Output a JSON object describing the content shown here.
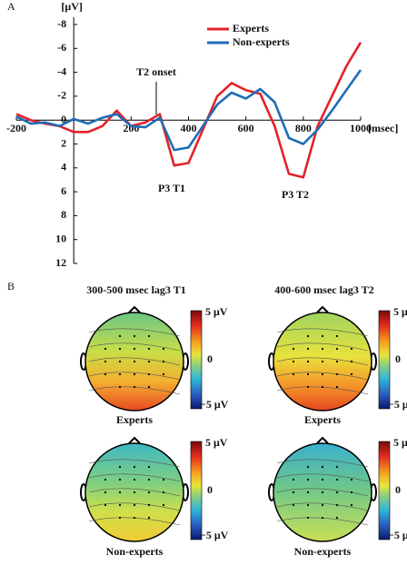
{
  "panel_labels": [
    "A",
    "B"
  ],
  "chart_data": {
    "type": "line",
    "y_label": "[μV]",
    "x_label": "[msec]",
    "x": [
      -200,
      -150,
      -100,
      -50,
      0,
      50,
      100,
      150,
      200,
      250,
      300,
      350,
      400,
      450,
      500,
      550,
      600,
      650,
      700,
      750,
      800,
      850,
      900,
      950,
      1000
    ],
    "series": [
      {
        "name": "Experts",
        "color": "#e3222b",
        "values": [
          -0.5,
          0,
          0.3,
          0.5,
          1,
          1,
          0.5,
          -0.8,
          0.5,
          0.2,
          -0.5,
          3.8,
          3.6,
          0.8,
          -2,
          -3.1,
          -2.5,
          -2.2,
          0.5,
          4.5,
          4.8,
          0.5,
          -2,
          -4.5,
          -6.5
        ]
      },
      {
        "name": "Non-experts",
        "color": "#1f6db5",
        "values": [
          -0.3,
          0.3,
          0.2,
          0.5,
          -0.1,
          0.3,
          -0.2,
          -0.5,
          0.5,
          0.6,
          -0.2,
          2.5,
          2.3,
          0.5,
          -1.3,
          -2.3,
          -1.8,
          -2.6,
          -1.5,
          1.5,
          2,
          0.8,
          -0.8,
          -2.5,
          -4.2
        ]
      }
    ],
    "xlim": [
      -200,
      1000
    ],
    "ylim": [
      12,
      -8
    ],
    "xticks": [
      -200,
      200,
      400,
      600,
      800,
      1000
    ],
    "yticks": [
      -8,
      -6,
      -4,
      -2,
      0,
      2,
      4,
      6,
      8,
      10,
      12
    ],
    "annotations": [
      "T2 onset",
      "P3 T1",
      "P3 T2"
    ],
    "legend": "upper right"
  },
  "topomaps": {
    "columns": [
      "300-500 msec lag3 T1",
      "400-600 msec lag3 T2"
    ],
    "rows": [
      "Experts",
      "Non-experts"
    ],
    "colorbar": {
      "max": "5 μV",
      "mid": "0",
      "min": "−5 μV"
    }
  }
}
